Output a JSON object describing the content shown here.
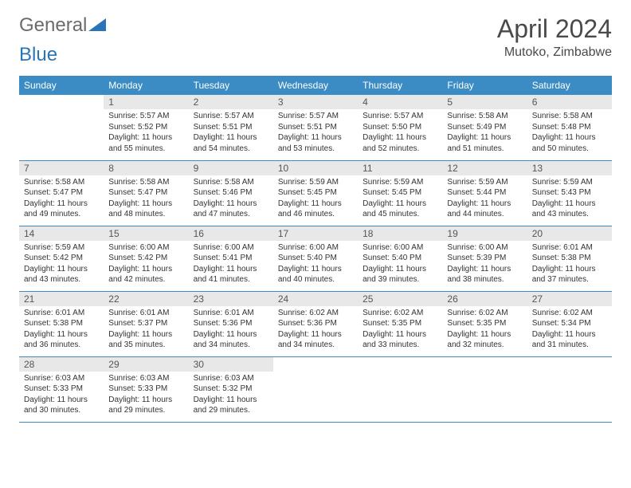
{
  "brand": {
    "word1": "General",
    "word2": "Blue"
  },
  "colors": {
    "header_bg": "#3b8bc4",
    "header_text": "#ffffff",
    "daynum_bg": "#e8e8e8",
    "border": "#3b8bc4",
    "title_color": "#4a4a4a",
    "brand_gray": "#6b6b6b",
    "brand_blue": "#2a74b8"
  },
  "title": "April 2024",
  "location": "Mutoko, Zimbabwe",
  "weekdays": [
    "Sunday",
    "Monday",
    "Tuesday",
    "Wednesday",
    "Thursday",
    "Friday",
    "Saturday"
  ],
  "rows": [
    [
      null,
      {
        "num": "1",
        "sunrise": "Sunrise: 5:57 AM",
        "sunset": "Sunset: 5:52 PM",
        "day1": "Daylight: 11 hours",
        "day2": "and 55 minutes."
      },
      {
        "num": "2",
        "sunrise": "Sunrise: 5:57 AM",
        "sunset": "Sunset: 5:51 PM",
        "day1": "Daylight: 11 hours",
        "day2": "and 54 minutes."
      },
      {
        "num": "3",
        "sunrise": "Sunrise: 5:57 AM",
        "sunset": "Sunset: 5:51 PM",
        "day1": "Daylight: 11 hours",
        "day2": "and 53 minutes."
      },
      {
        "num": "4",
        "sunrise": "Sunrise: 5:57 AM",
        "sunset": "Sunset: 5:50 PM",
        "day1": "Daylight: 11 hours",
        "day2": "and 52 minutes."
      },
      {
        "num": "5",
        "sunrise": "Sunrise: 5:58 AM",
        "sunset": "Sunset: 5:49 PM",
        "day1": "Daylight: 11 hours",
        "day2": "and 51 minutes."
      },
      {
        "num": "6",
        "sunrise": "Sunrise: 5:58 AM",
        "sunset": "Sunset: 5:48 PM",
        "day1": "Daylight: 11 hours",
        "day2": "and 50 minutes."
      }
    ],
    [
      {
        "num": "7",
        "sunrise": "Sunrise: 5:58 AM",
        "sunset": "Sunset: 5:47 PM",
        "day1": "Daylight: 11 hours",
        "day2": "and 49 minutes."
      },
      {
        "num": "8",
        "sunrise": "Sunrise: 5:58 AM",
        "sunset": "Sunset: 5:47 PM",
        "day1": "Daylight: 11 hours",
        "day2": "and 48 minutes."
      },
      {
        "num": "9",
        "sunrise": "Sunrise: 5:58 AM",
        "sunset": "Sunset: 5:46 PM",
        "day1": "Daylight: 11 hours",
        "day2": "and 47 minutes."
      },
      {
        "num": "10",
        "sunrise": "Sunrise: 5:59 AM",
        "sunset": "Sunset: 5:45 PM",
        "day1": "Daylight: 11 hours",
        "day2": "and 46 minutes."
      },
      {
        "num": "11",
        "sunrise": "Sunrise: 5:59 AM",
        "sunset": "Sunset: 5:45 PM",
        "day1": "Daylight: 11 hours",
        "day2": "and 45 minutes."
      },
      {
        "num": "12",
        "sunrise": "Sunrise: 5:59 AM",
        "sunset": "Sunset: 5:44 PM",
        "day1": "Daylight: 11 hours",
        "day2": "and 44 minutes."
      },
      {
        "num": "13",
        "sunrise": "Sunrise: 5:59 AM",
        "sunset": "Sunset: 5:43 PM",
        "day1": "Daylight: 11 hours",
        "day2": "and 43 minutes."
      }
    ],
    [
      {
        "num": "14",
        "sunrise": "Sunrise: 5:59 AM",
        "sunset": "Sunset: 5:42 PM",
        "day1": "Daylight: 11 hours",
        "day2": "and 43 minutes."
      },
      {
        "num": "15",
        "sunrise": "Sunrise: 6:00 AM",
        "sunset": "Sunset: 5:42 PM",
        "day1": "Daylight: 11 hours",
        "day2": "and 42 minutes."
      },
      {
        "num": "16",
        "sunrise": "Sunrise: 6:00 AM",
        "sunset": "Sunset: 5:41 PM",
        "day1": "Daylight: 11 hours",
        "day2": "and 41 minutes."
      },
      {
        "num": "17",
        "sunrise": "Sunrise: 6:00 AM",
        "sunset": "Sunset: 5:40 PM",
        "day1": "Daylight: 11 hours",
        "day2": "and 40 minutes."
      },
      {
        "num": "18",
        "sunrise": "Sunrise: 6:00 AM",
        "sunset": "Sunset: 5:40 PM",
        "day1": "Daylight: 11 hours",
        "day2": "and 39 minutes."
      },
      {
        "num": "19",
        "sunrise": "Sunrise: 6:00 AM",
        "sunset": "Sunset: 5:39 PM",
        "day1": "Daylight: 11 hours",
        "day2": "and 38 minutes."
      },
      {
        "num": "20",
        "sunrise": "Sunrise: 6:01 AM",
        "sunset": "Sunset: 5:38 PM",
        "day1": "Daylight: 11 hours",
        "day2": "and 37 minutes."
      }
    ],
    [
      {
        "num": "21",
        "sunrise": "Sunrise: 6:01 AM",
        "sunset": "Sunset: 5:38 PM",
        "day1": "Daylight: 11 hours",
        "day2": "and 36 minutes."
      },
      {
        "num": "22",
        "sunrise": "Sunrise: 6:01 AM",
        "sunset": "Sunset: 5:37 PM",
        "day1": "Daylight: 11 hours",
        "day2": "and 35 minutes."
      },
      {
        "num": "23",
        "sunrise": "Sunrise: 6:01 AM",
        "sunset": "Sunset: 5:36 PM",
        "day1": "Daylight: 11 hours",
        "day2": "and 34 minutes."
      },
      {
        "num": "24",
        "sunrise": "Sunrise: 6:02 AM",
        "sunset": "Sunset: 5:36 PM",
        "day1": "Daylight: 11 hours",
        "day2": "and 34 minutes."
      },
      {
        "num": "25",
        "sunrise": "Sunrise: 6:02 AM",
        "sunset": "Sunset: 5:35 PM",
        "day1": "Daylight: 11 hours",
        "day2": "and 33 minutes."
      },
      {
        "num": "26",
        "sunrise": "Sunrise: 6:02 AM",
        "sunset": "Sunset: 5:35 PM",
        "day1": "Daylight: 11 hours",
        "day2": "and 32 minutes."
      },
      {
        "num": "27",
        "sunrise": "Sunrise: 6:02 AM",
        "sunset": "Sunset: 5:34 PM",
        "day1": "Daylight: 11 hours",
        "day2": "and 31 minutes."
      }
    ],
    [
      {
        "num": "28",
        "sunrise": "Sunrise: 6:03 AM",
        "sunset": "Sunset: 5:33 PM",
        "day1": "Daylight: 11 hours",
        "day2": "and 30 minutes."
      },
      {
        "num": "29",
        "sunrise": "Sunrise: 6:03 AM",
        "sunset": "Sunset: 5:33 PM",
        "day1": "Daylight: 11 hours",
        "day2": "and 29 minutes."
      },
      {
        "num": "30",
        "sunrise": "Sunrise: 6:03 AM",
        "sunset": "Sunset: 5:32 PM",
        "day1": "Daylight: 11 hours",
        "day2": "and 29 minutes."
      },
      null,
      null,
      null,
      null
    ]
  ]
}
